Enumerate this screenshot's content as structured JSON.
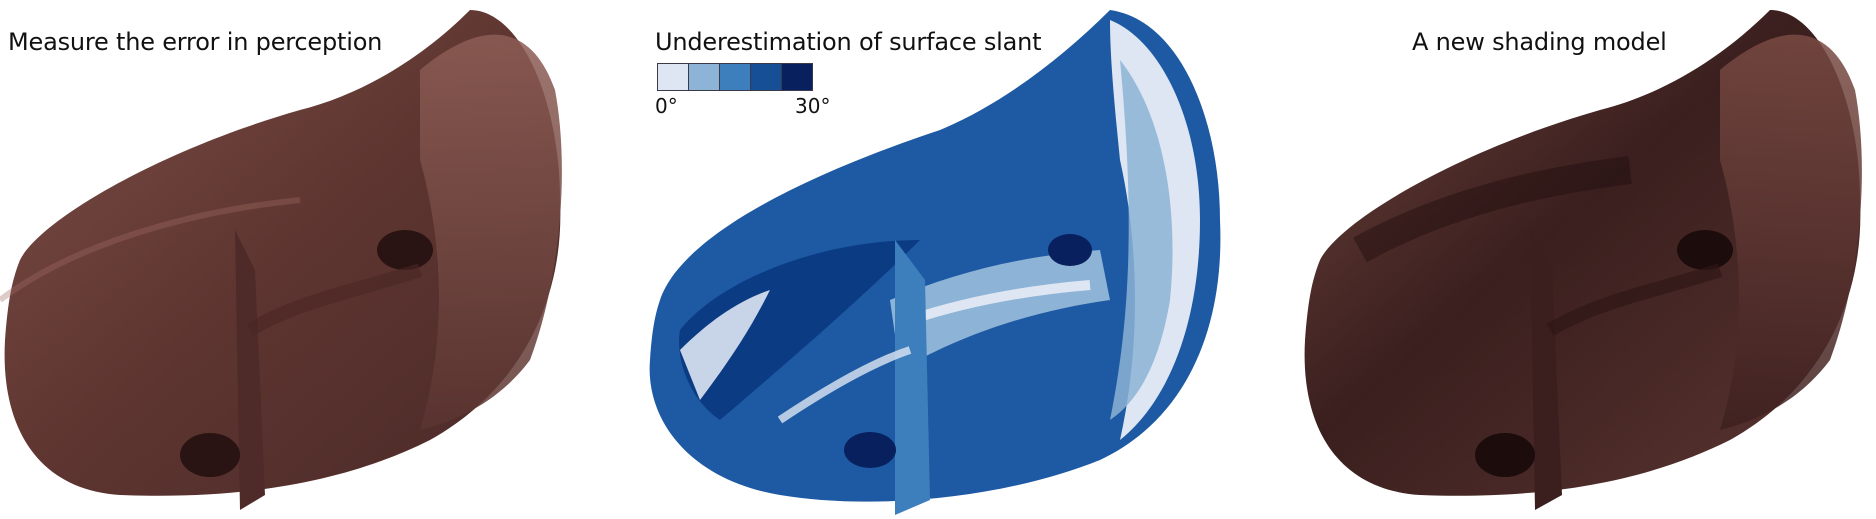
{
  "panels": [
    {
      "title": "Measure the error in perception"
    },
    {
      "title": "Underestimation of surface slant"
    },
    {
      "title": "A new shading model"
    }
  ],
  "legend": {
    "min_label": "0°",
    "max_label": "30°",
    "colors": [
      "#dde6f2",
      "#8db3d6",
      "#3d7fbd",
      "#174f97",
      "#08205e"
    ]
  },
  "colors": {
    "surface_light": "#8a5a52",
    "surface_mid": "#6b3f39",
    "surface_dark": "#3a1e1d",
    "slant_base": "#1d5aa3"
  }
}
